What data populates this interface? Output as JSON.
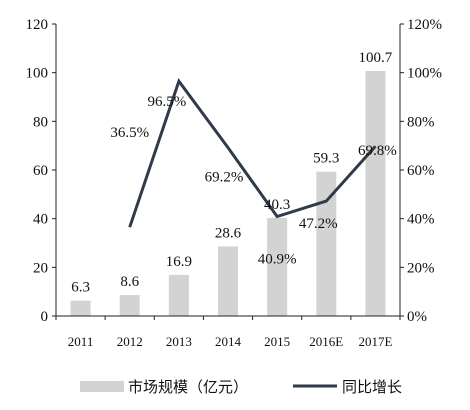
{
  "chart_data": {
    "type": "bar",
    "categories": [
      "2011",
      "2012",
      "2013",
      "2014",
      "2015",
      "2016E",
      "2017E"
    ],
    "series": [
      {
        "name": "市场规模（亿元）",
        "type": "bar",
        "axis": "left",
        "values": [
          6.3,
          8.6,
          16.9,
          28.6,
          40.3,
          59.3,
          100.7
        ],
        "labels": [
          "6.3",
          "8.6",
          "16.9",
          "28.6",
          "40.3",
          "59.3",
          "100.7"
        ]
      },
      {
        "name": "同比增长",
        "type": "line",
        "axis": "right",
        "values": [
          null,
          36.5,
          96.5,
          69.2,
          40.9,
          47.2,
          69.8
        ],
        "labels": [
          "",
          "36.5%",
          "96.5%",
          "69.2%",
          "40.9%",
          "47.2%",
          "69.8%"
        ]
      }
    ],
    "y_left": {
      "ylim": [
        0,
        120
      ],
      "ticks": [
        "0",
        "20",
        "40",
        "60",
        "80",
        "100",
        "120"
      ]
    },
    "y_right": {
      "ylim": [
        0,
        120
      ],
      "ticks": [
        "0%",
        "20%",
        "40%",
        "60%",
        "80%",
        "100%",
        "120%"
      ]
    },
    "grid": false,
    "legend_position": "bottom",
    "colors": {
      "bar": "#d3d3d3",
      "line": "#2f3a4a",
      "axis": "#222222"
    }
  }
}
